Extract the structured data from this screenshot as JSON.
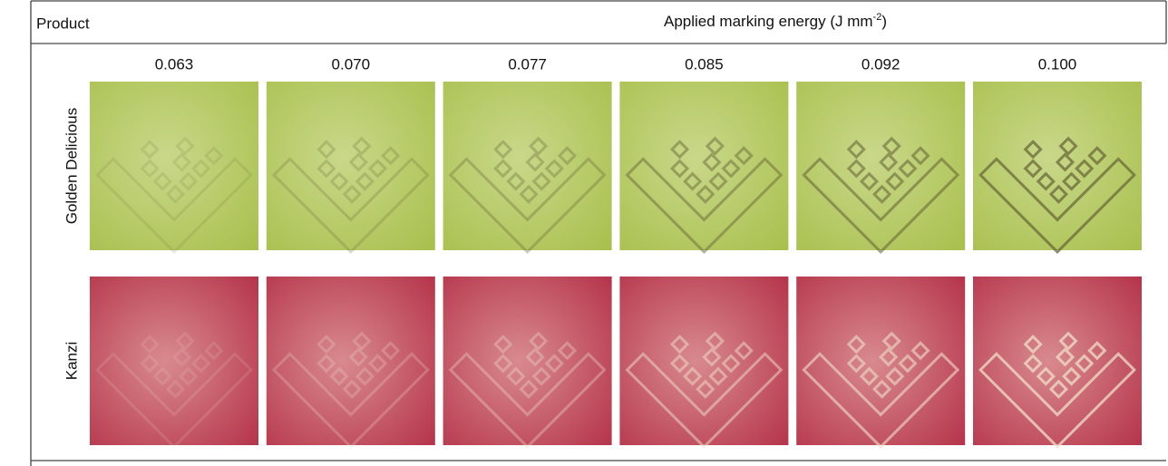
{
  "header": {
    "product": "Product",
    "energy": {
      "text": "Applied marking energy (J mm",
      "superscript": "-2",
      "suffix": ")"
    }
  },
  "columns": [
    "0.063",
    "0.070",
    "0.077",
    "0.085",
    "0.092",
    "0.100"
  ],
  "rows": [
    {
      "label": "Golden Delicious"
    },
    {
      "label": "Kanzi"
    }
  ]
}
